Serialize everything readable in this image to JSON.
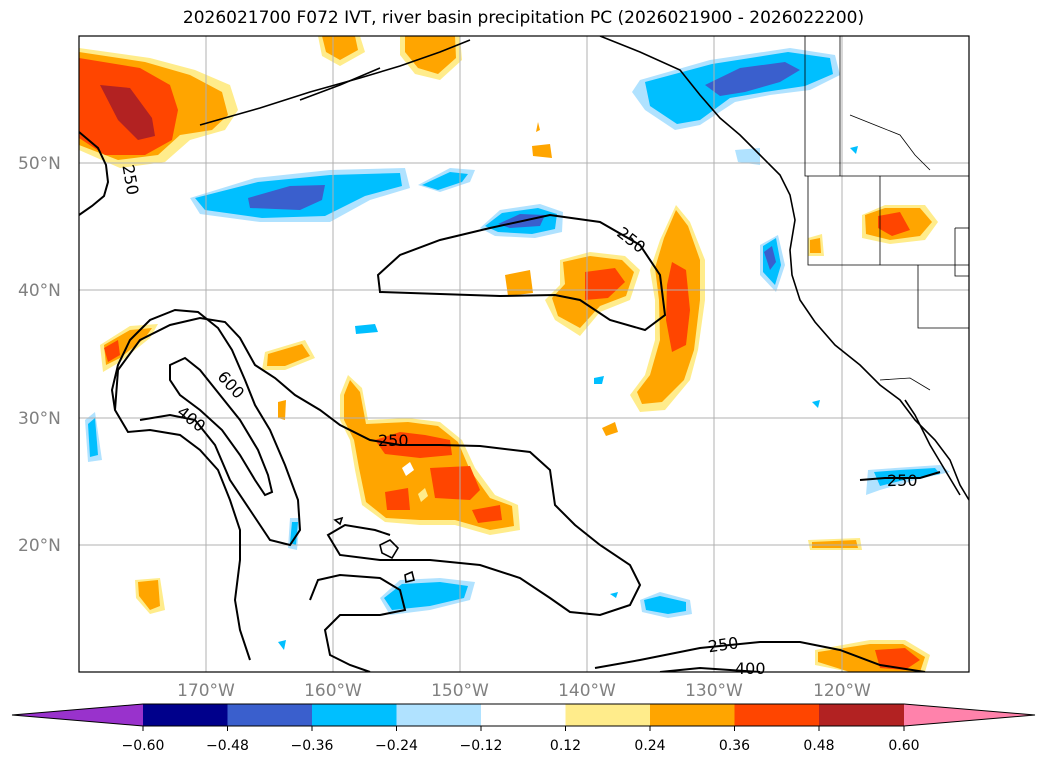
{
  "title": "2026021700 F072 IVT, river basin precipitation PC (2026021900 - 2026022200)",
  "map": {
    "lat_labels": [
      "50°N",
      "40°N",
      "30°N",
      "20°N"
    ],
    "lon_labels": [
      "170°W",
      "160°W",
      "150°W",
      "140°W",
      "130°W",
      "120°W"
    ],
    "contour_labels": {
      "c250_nw": "250",
      "c600": "600",
      "c400": "400",
      "c250_center": "250",
      "c250_ne": "250",
      "c250_east": "250",
      "c250_south": "250",
      "c400_south": "400"
    }
  },
  "colorbar": {
    "colors": [
      "#9932cc",
      "#00008b",
      "#3a5fcd",
      "#00bfff",
      "#b0e2ff",
      "#ffffff",
      "#ffec8b",
      "#ffa500",
      "#ff4500",
      "#b22222",
      "#ff82ab"
    ],
    "ticks": [
      "−0.60",
      "−0.48",
      "−0.36",
      "−0.24",
      "−0.12",
      "0.12",
      "0.24",
      "0.36",
      "0.48",
      "0.60"
    ]
  },
  "palette": {
    "pale_yellow": "#ffec8b",
    "orange": "#ffa500",
    "orange_red": "#ff4500",
    "firebrick": "#b22222",
    "light_blue": "#b0e2ff",
    "deep_sky_blue": "#00bfff",
    "royal_blue": "#3a5fcd"
  }
}
